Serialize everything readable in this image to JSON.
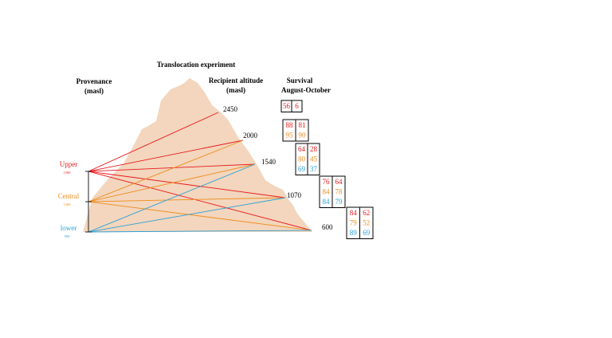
{
  "title": "Translocation experiment",
  "headers": {
    "provenance": [
      "Provenance",
      "(masl)"
    ],
    "recipient": [
      "Recipient altitude",
      "(masl)"
    ],
    "survival": [
      "Survival",
      "August-October"
    ]
  },
  "colors": {
    "upper": "#e8191c",
    "central": "#ef8c1d",
    "lower": "#2a9fd8",
    "mountain": "#f3d6bd",
    "axis": "#222222"
  },
  "provenances": [
    {
      "id": "upper",
      "label": "Upper",
      "altitude": "1590"
    },
    {
      "id": "central",
      "label": "Central",
      "altitude": "1300"
    },
    {
      "id": "lower",
      "label": "lower",
      "altitude": "590"
    }
  ],
  "sites": [
    {
      "label": "2450",
      "survival": [
        [
          "56",
          "6"
        ]
      ]
    },
    {
      "label": "2000",
      "survival": [
        [
          "88",
          "81"
        ],
        [
          "95",
          "90"
        ]
      ]
    },
    {
      "label": "1540",
      "survival": [
        [
          "64",
          "28"
        ],
        [
          "80",
          "45"
        ],
        [
          "69",
          "37"
        ]
      ]
    },
    {
      "label": "1070",
      "survival": [
        [
          "76",
          "64"
        ],
        [
          "84",
          "78"
        ],
        [
          "84",
          "79"
        ]
      ]
    },
    {
      "label": "600",
      "survival": [
        [
          "84",
          "62"
        ],
        [
          "79",
          "52"
        ],
        [
          "89",
          "69"
        ]
      ]
    }
  ],
  "links": [
    {
      "from": "upper",
      "to": [
        "2450",
        "2000",
        "1540",
        "1070",
        "600"
      ]
    },
    {
      "from": "central",
      "to": [
        "2000",
        "1540",
        "1070",
        "600"
      ]
    },
    {
      "from": "lower",
      "to": [
        "1540",
        "1070",
        "600"
      ]
    }
  ]
}
